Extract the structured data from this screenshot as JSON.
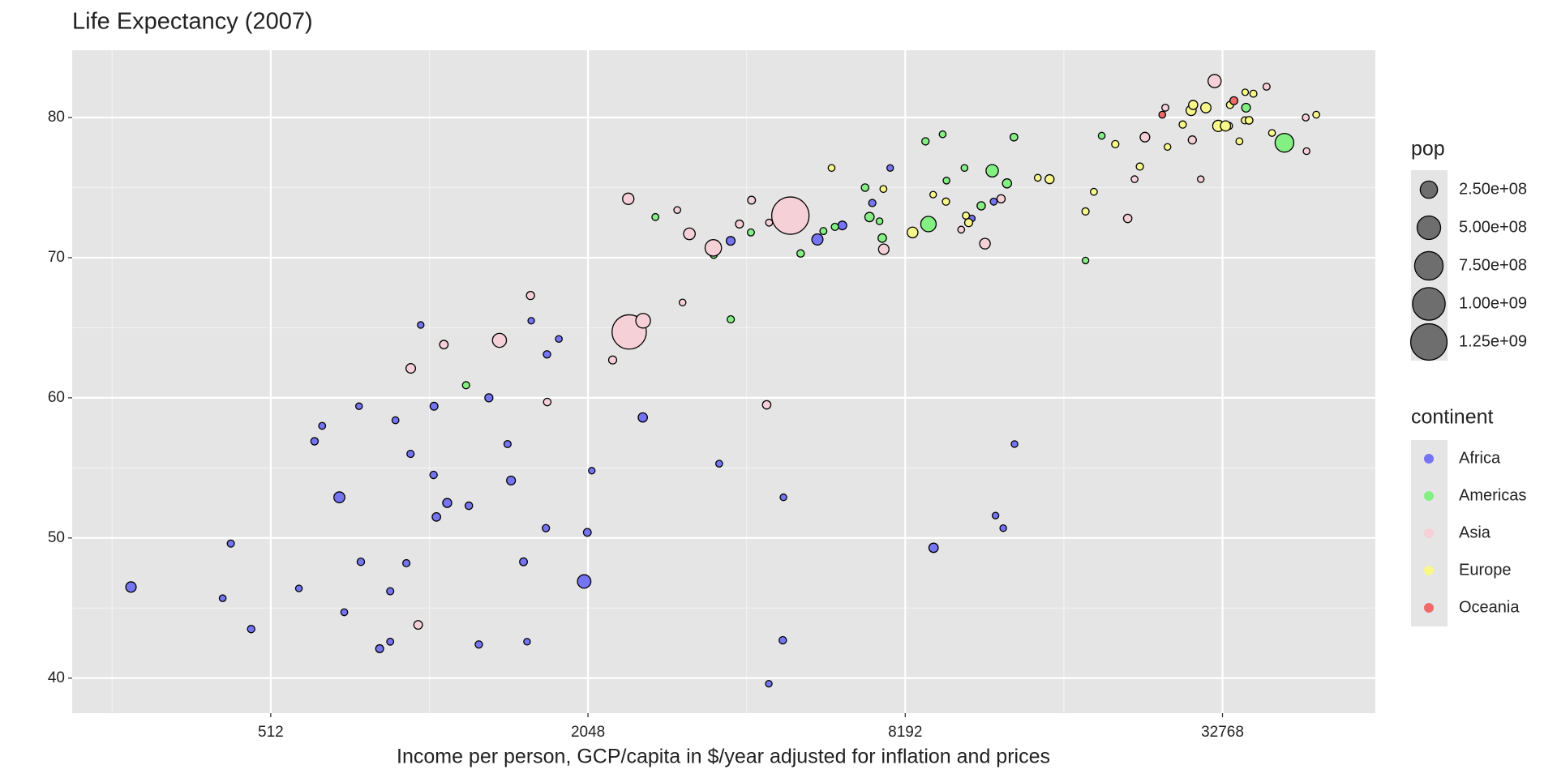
{
  "chart_data": {
    "type": "scatter",
    "title": "Life Expectancy (2007)",
    "x_label": "Income per person, GCP/capita in $/year adjusted for inflation and prices",
    "x_log_base": 2,
    "xlim": [
      215,
      63900
    ],
    "ylim": [
      37.5,
      84.8
    ],
    "xticks": [
      512,
      2048,
      8192,
      32768
    ],
    "yticks": [
      40,
      50,
      60,
      70,
      80
    ],
    "grid": true,
    "size_legend": {
      "title": "pop",
      "breaks": [
        {
          "value": 250000000,
          "label": "2.50e+08"
        },
        {
          "value": 500000000,
          "label": "5.00e+08"
        },
        {
          "value": 750000000,
          "label": "7.50e+08"
        },
        {
          "value": 1000000000,
          "label": "1.00e+09"
        },
        {
          "value": 1250000000,
          "label": "1.25e+09"
        }
      ]
    },
    "color_legend_title": "continent",
    "series": [
      {
        "name": "Africa",
        "color": "#7575f4",
        "x": [
          6223,
          4797,
          1441,
          12570,
          1217,
          430,
          2042,
          706,
          1704,
          986,
          278,
          3633,
          1545,
          2082,
          5581,
          12154,
          641,
          691,
          13206,
          753,
          1328,
          943,
          579,
          1463,
          1569,
          415,
          12057,
          1045,
          759,
          1043,
          1803,
          10957,
          3820,
          824,
          4811,
          620,
          2014,
          7670,
          863,
          1598,
          1712,
          863,
          926,
          9270,
          2602,
          4513,
          1107,
          883,
          7093,
          1056,
          1271,
          470
        ],
        "values": [
          72.3,
          42.7,
          56.7,
          50.7,
          52.3,
          49.6,
          50.4,
          44.7,
          50.7,
          65.2,
          46.5,
          55.3,
          48.3,
          54.8,
          71.3,
          51.6,
          58.0,
          52.9,
          56.7,
          59.4,
          60.0,
          56.0,
          46.4,
          54.1,
          42.6,
          45.7,
          74.0,
          59.4,
          48.3,
          54.5,
          64.2,
          72.8,
          71.2,
          42.1,
          52.9,
          56.9,
          46.9,
          76.4,
          46.2,
          65.5,
          63.1,
          42.6,
          48.2,
          49.3,
          58.6,
          39.6,
          52.5,
          58.4,
          73.9,
          51.5,
          42.4,
          43.5
        ],
        "sizes": [
          33300000,
          12400000,
          8100000,
          1600000,
          14300000,
          8400000,
          17700000,
          4400000,
          10200000,
          700000,
          64600000,
          3800000,
          18000000,
          500000,
          80300000,
          550000,
          4900000,
          76500000,
          1450000,
          1700000,
          22900000,
          9900000,
          1500000,
          35600000,
          2000000,
          3200000,
          6000000,
          19200000,
          13300000,
          12000000,
          3300000,
          1250000,
          33800000,
          20000000,
          2050000,
          12900000,
          135000000,
          800000,
          8900000,
          200000,
          12300000,
          6100000,
          9100000,
          44000000,
          42300000,
          1100000,
          38100000,
          5700000,
          10300000,
          29200000,
          11700000,
          12300000
        ]
      },
      {
        "name": "Americas",
        "color": "#84f084",
        "x": [
          12779,
          3822,
          9066,
          36319,
          13172,
          7007,
          9645,
          8948,
          6025,
          6873,
          5728,
          5186,
          1202,
          3548,
          7321,
          11978,
          2749,
          9809,
          4173,
          7409,
          19329,
          18009,
          42952,
          10611,
          11416
        ],
        "values": [
          75.3,
          65.6,
          72.4,
          80.7,
          78.6,
          72.9,
          78.8,
          78.3,
          72.2,
          75.0,
          71.9,
          70.3,
          60.9,
          70.2,
          72.6,
          76.2,
          72.9,
          75.5,
          71.8,
          71.4,
          78.7,
          69.8,
          78.2,
          76.4,
          73.7
        ],
        "sizes": [
          40300000,
          9100000,
          190000000,
          33400000,
          16300000,
          44200000,
          4100000,
          11400000,
          9300000,
          13800000,
          6900000,
          12600000,
          8500000,
          7500000,
          2800000,
          108700000,
          5700000,
          3200000,
          6700000,
          28700000,
          3900000,
          1100000,
          301000000,
          3400000,
          26100000
        ]
      },
      {
        "name": "Asia",
        "color": "#f6d0d7",
        "x": [
          975,
          29796,
          1391,
          1714,
          4959,
          39725,
          2452,
          3541,
          11606,
          4471,
          25523,
          31656,
          4519,
          1593,
          23348,
          47307,
          10461,
          12452,
          3096,
          944,
          1091,
          22316,
          2606,
          3190,
          21655,
          47143,
          3970,
          4185,
          28718,
          7458,
          2442,
          3025,
          2281
        ],
        "values": [
          43.8,
          75.6,
          64.1,
          59.7,
          73.0,
          82.2,
          64.7,
          70.7,
          71.0,
          59.5,
          80.7,
          82.6,
          72.5,
          67.3,
          78.6,
          77.6,
          72.0,
          74.2,
          66.8,
          62.1,
          63.8,
          75.6,
          65.5,
          71.7,
          72.8,
          80.0,
          72.4,
          74.1,
          78.4,
          70.6,
          74.2,
          73.4,
          62.7
        ],
        "sizes": [
          31900000,
          700000,
          150000000,
          14100000,
          1318000000,
          6980000,
          1110000000,
          223500000,
          69500000,
          27500000,
          6400000,
          127500000,
          6100000,
          23300000,
          49000000,
          2500000,
          3900000,
          24800000,
          2900000,
          47800000,
          28900000,
          3200000,
          169000000,
          91100000,
          27600000,
          4550000,
          20400000,
          19300000,
          23200000,
          65100000,
          85300000,
          4000000,
          22200000
        ]
      },
      {
        "name": "Europe",
        "color": "#f7f78a",
        "x": [
          5937,
          36126,
          33693,
          7446,
          10681,
          14619,
          22833,
          35278,
          33207,
          30470,
          32170,
          27538,
          18009,
          36181,
          40676,
          28570,
          9254,
          36798,
          49357,
          15390,
          20510,
          10808,
          9787,
          18678,
          25768,
          28821,
          33860,
          37506,
          8458,
          33203
        ],
        "values": [
          76.4,
          79.8,
          79.4,
          74.9,
          73.0,
          75.7,
          76.5,
          78.3,
          79.3,
          80.7,
          79.4,
          79.5,
          73.3,
          81.8,
          78.9,
          80.5,
          74.5,
          79.8,
          80.2,
          75.6,
          78.1,
          72.5,
          74.0,
          74.7,
          77.9,
          80.9,
          80.9,
          81.7,
          71.8,
          79.4
        ],
        "sizes": [
          3600000,
          8200000,
          10400000,
          4600000,
          7300000,
          4500000,
          10200000,
          5500000,
          5200000,
          61100000,
          82400000,
          10700000,
          10000000,
          300000,
          4100000,
          58100000,
          700000,
          16600000,
          4600000,
          38500000,
          10600000,
          22300000,
          10200000,
          5400000,
          2000000,
          40400000,
          9000000,
          7600000,
          71200000,
          60800000
        ]
      },
      {
        "name": "Oceania",
        "color": "#f06a6a",
        "x": [
          34435,
          25185
        ],
        "values": [
          81.2,
          80.2
        ],
        "sizes": [
          20400000,
          4100000
        ]
      }
    ]
  }
}
